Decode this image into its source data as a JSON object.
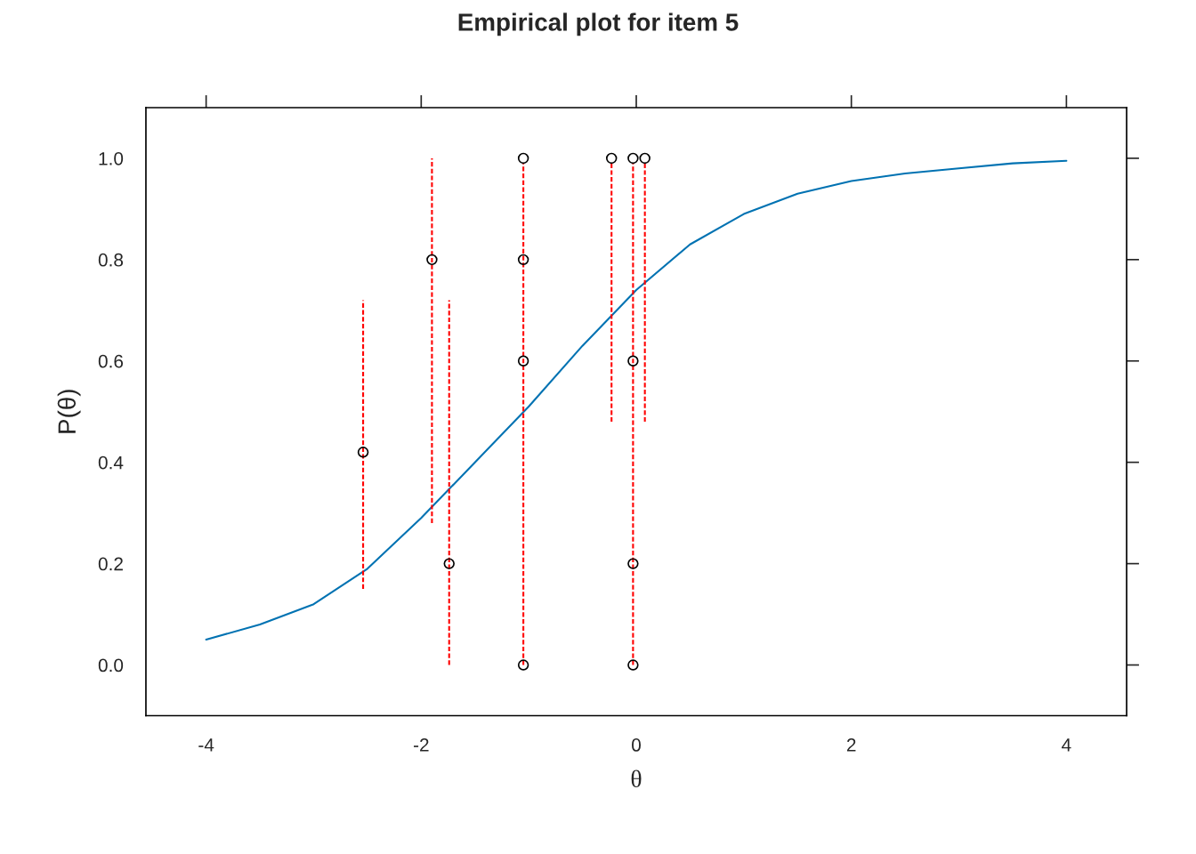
{
  "chart_data": {
    "type": "scatter",
    "title": "Empirical plot for item 5",
    "xlabel": "θ",
    "ylabel": "P(θ)",
    "xlim": [
      -4.56,
      4.56
    ],
    "ylim": [
      -0.1,
      1.1
    ],
    "xticks": [
      -4,
      -2,
      0,
      2,
      4
    ],
    "yticks": [
      {
        "value": 0,
        "label": "0.0"
      },
      {
        "value": 0.2,
        "label": "0.2"
      },
      {
        "value": 0.4,
        "label": "0.4"
      },
      {
        "value": 0.6,
        "label": "0.6"
      },
      {
        "value": 0.8,
        "label": "0.8"
      },
      {
        "value": 1,
        "label": "1.0"
      }
    ],
    "grid": false,
    "series": [
      {
        "type": "line",
        "color": "#0072b2",
        "line_style": "solid",
        "x": [
          -4,
          -3.5,
          -3,
          -2.5,
          -2,
          -1.5,
          -1,
          -0.5,
          0,
          0.5,
          1,
          1.5,
          2,
          2.5,
          3,
          3.5,
          4
        ],
        "values": [
          0.05,
          0.08,
          0.12,
          0.19,
          0.29,
          0.4,
          0.51,
          0.63,
          0.74,
          0.83,
          0.89,
          0.93,
          0.955,
          0.97,
          0.98,
          0.99,
          0.995
        ]
      },
      {
        "type": "line",
        "color": "#ff0000",
        "line_style": "dashed",
        "x": [
          -2.54,
          -2.54
        ],
        "values": [
          0.15,
          0.72
        ]
      },
      {
        "type": "line",
        "color": "#ff0000",
        "line_style": "dashed",
        "x": [
          -1.9,
          -1.9
        ],
        "values": [
          0.28,
          1.0
        ]
      },
      {
        "type": "line",
        "color": "#ff0000",
        "line_style": "dashed",
        "x": [
          -1.74,
          -1.74
        ],
        "values": [
          0.0,
          0.72
        ]
      },
      {
        "type": "line",
        "color": "#ff0000",
        "line_style": "dashed",
        "x": [
          -1.05,
          -1.05
        ],
        "values": [
          0.0,
          0.99
        ]
      },
      {
        "type": "line",
        "color": "#ff0000",
        "line_style": "dashed",
        "x": [
          -0.23,
          -0.23
        ],
        "values": [
          0.48,
          0.99
        ]
      },
      {
        "type": "line",
        "color": "#ff0000",
        "line_style": "dashed",
        "x": [
          -0.03,
          -0.03
        ],
        "values": [
          0.0,
          0.99
        ]
      },
      {
        "type": "line",
        "color": "#ff0000",
        "line_style": "dashed",
        "x": [
          0.08,
          0.08
        ],
        "values": [
          0.48,
          0.99
        ]
      },
      {
        "color": "#000000",
        "marker": "circle",
        "x": [
          -2.54,
          -1.9,
          -1.74,
          -1.05,
          -1.05,
          -1.05,
          -1.05,
          -0.23,
          -0.03,
          -0.03,
          -0.03,
          -0.03,
          0.08
        ],
        "values": [
          0.42,
          0.8,
          0.2,
          1.0,
          0.8,
          0.6,
          0.0,
          1.0,
          1.0,
          0.6,
          0.2,
          0.0,
          1.0
        ]
      }
    ]
  }
}
